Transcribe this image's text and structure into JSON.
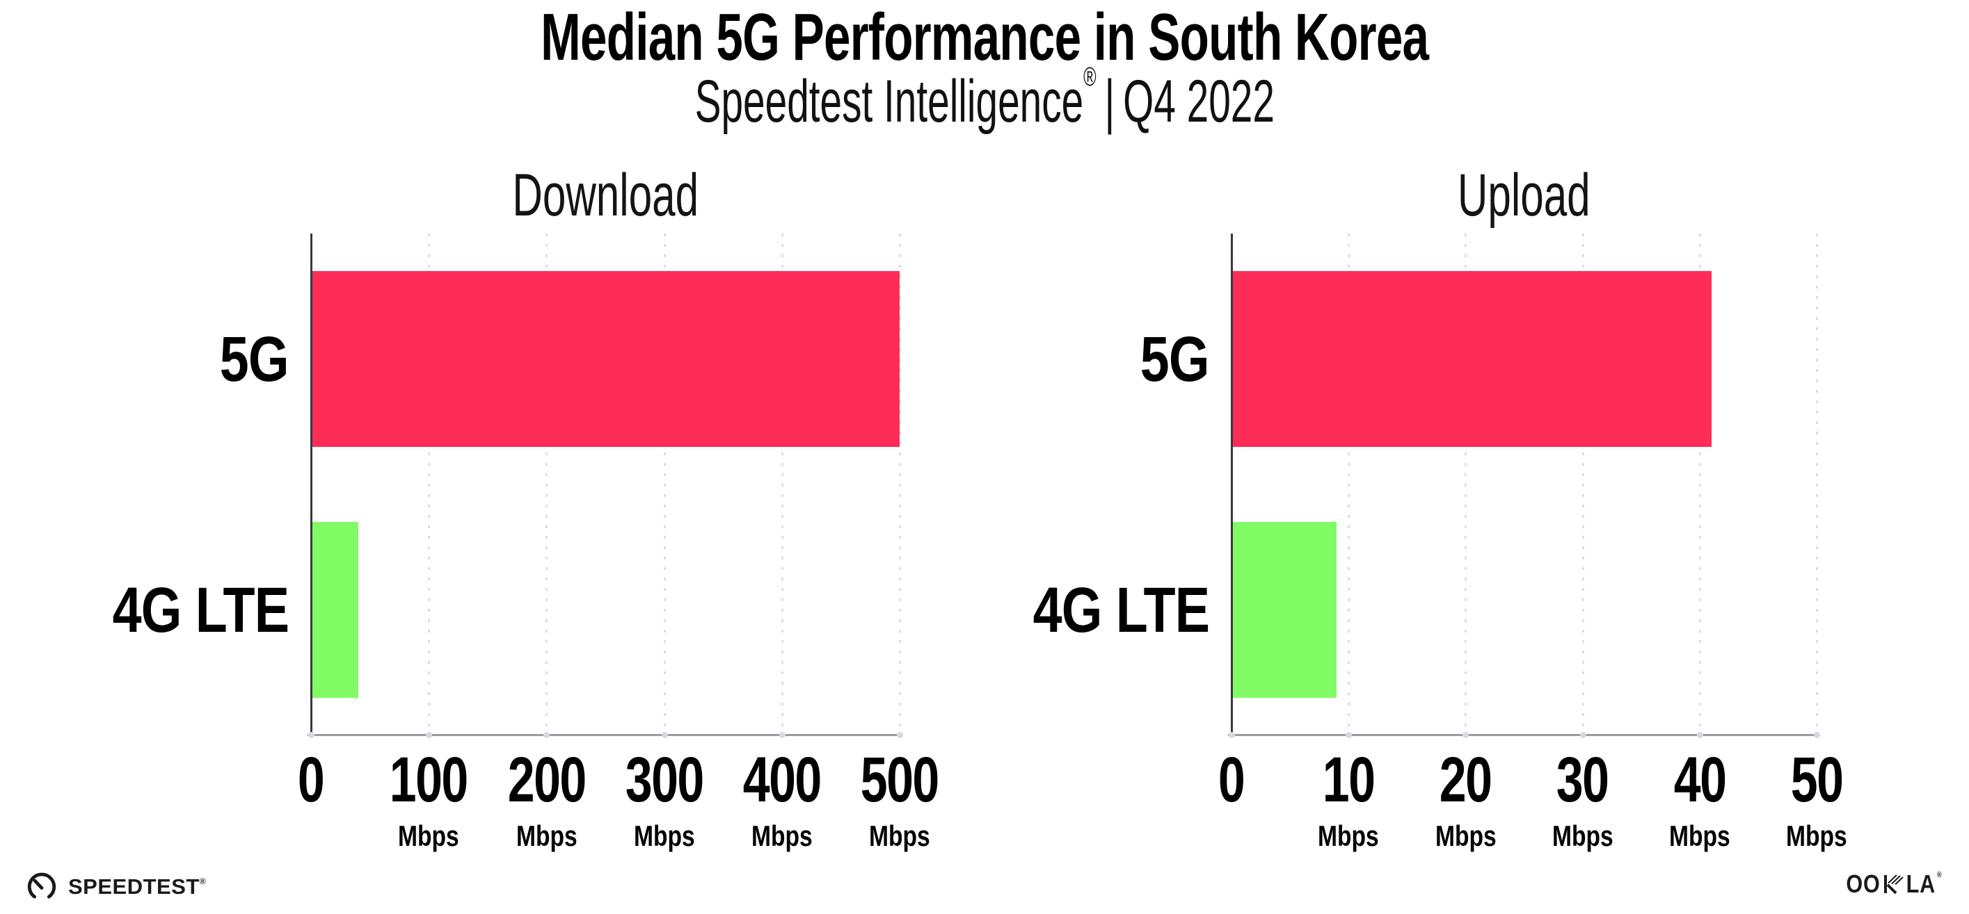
{
  "header": {
    "title": "Median 5G Performance in South Korea",
    "subtitle_brand": "Speedtest Intelligence",
    "subtitle_reg": "®",
    "subtitle_divider": "|",
    "subtitle_period": "Q4 2022"
  },
  "colors": {
    "bar_5g": "#FD2D58",
    "bar_4g_lte": "#80FB64",
    "gridline": "#DCDCE6",
    "x_axis_line": "#9B9BA0",
    "y_axis_spine": "#39393B",
    "tick_dot": "#D8D8E2",
    "text": "#000000",
    "background": "#FFFFFF"
  },
  "chart_data": [
    {
      "type": "bar",
      "orientation": "horizontal",
      "title": "Download",
      "categories": [
        "5G",
        "4G LTE"
      ],
      "values": [
        500,
        40
      ],
      "value_unit": "Mbps",
      "xlim": [
        0,
        500
      ],
      "xticks": [
        0,
        100,
        200,
        300,
        400,
        500
      ],
      "xtick_unit": "Mbps",
      "xtick_unit_on_zero": false,
      "bar_colors": [
        "#FD2D58",
        "#80FB64"
      ],
      "bar_height_frac": 0.35,
      "grid": "vertical-dotted",
      "legend": "none"
    },
    {
      "type": "bar",
      "orientation": "horizontal",
      "title": "Upload",
      "categories": [
        "5G",
        "4G LTE"
      ],
      "values": [
        41,
        9
      ],
      "value_unit": "Mbps",
      "xlim": [
        0,
        50
      ],
      "xticks": [
        0,
        10,
        20,
        30,
        40,
        50
      ],
      "xtick_unit": "Mbps",
      "xtick_unit_on_zero": false,
      "bar_colors": [
        "#FD2D58",
        "#80FB64"
      ],
      "bar_height_frac": 0.35,
      "grid": "vertical-dotted",
      "legend": "none"
    }
  ],
  "footer": {
    "speedtest_label": "SPEEDTEST",
    "speedtest_reg": "®",
    "ookla_left": "OO",
    "ookla_right": "LA",
    "ookla_reg": "®"
  }
}
